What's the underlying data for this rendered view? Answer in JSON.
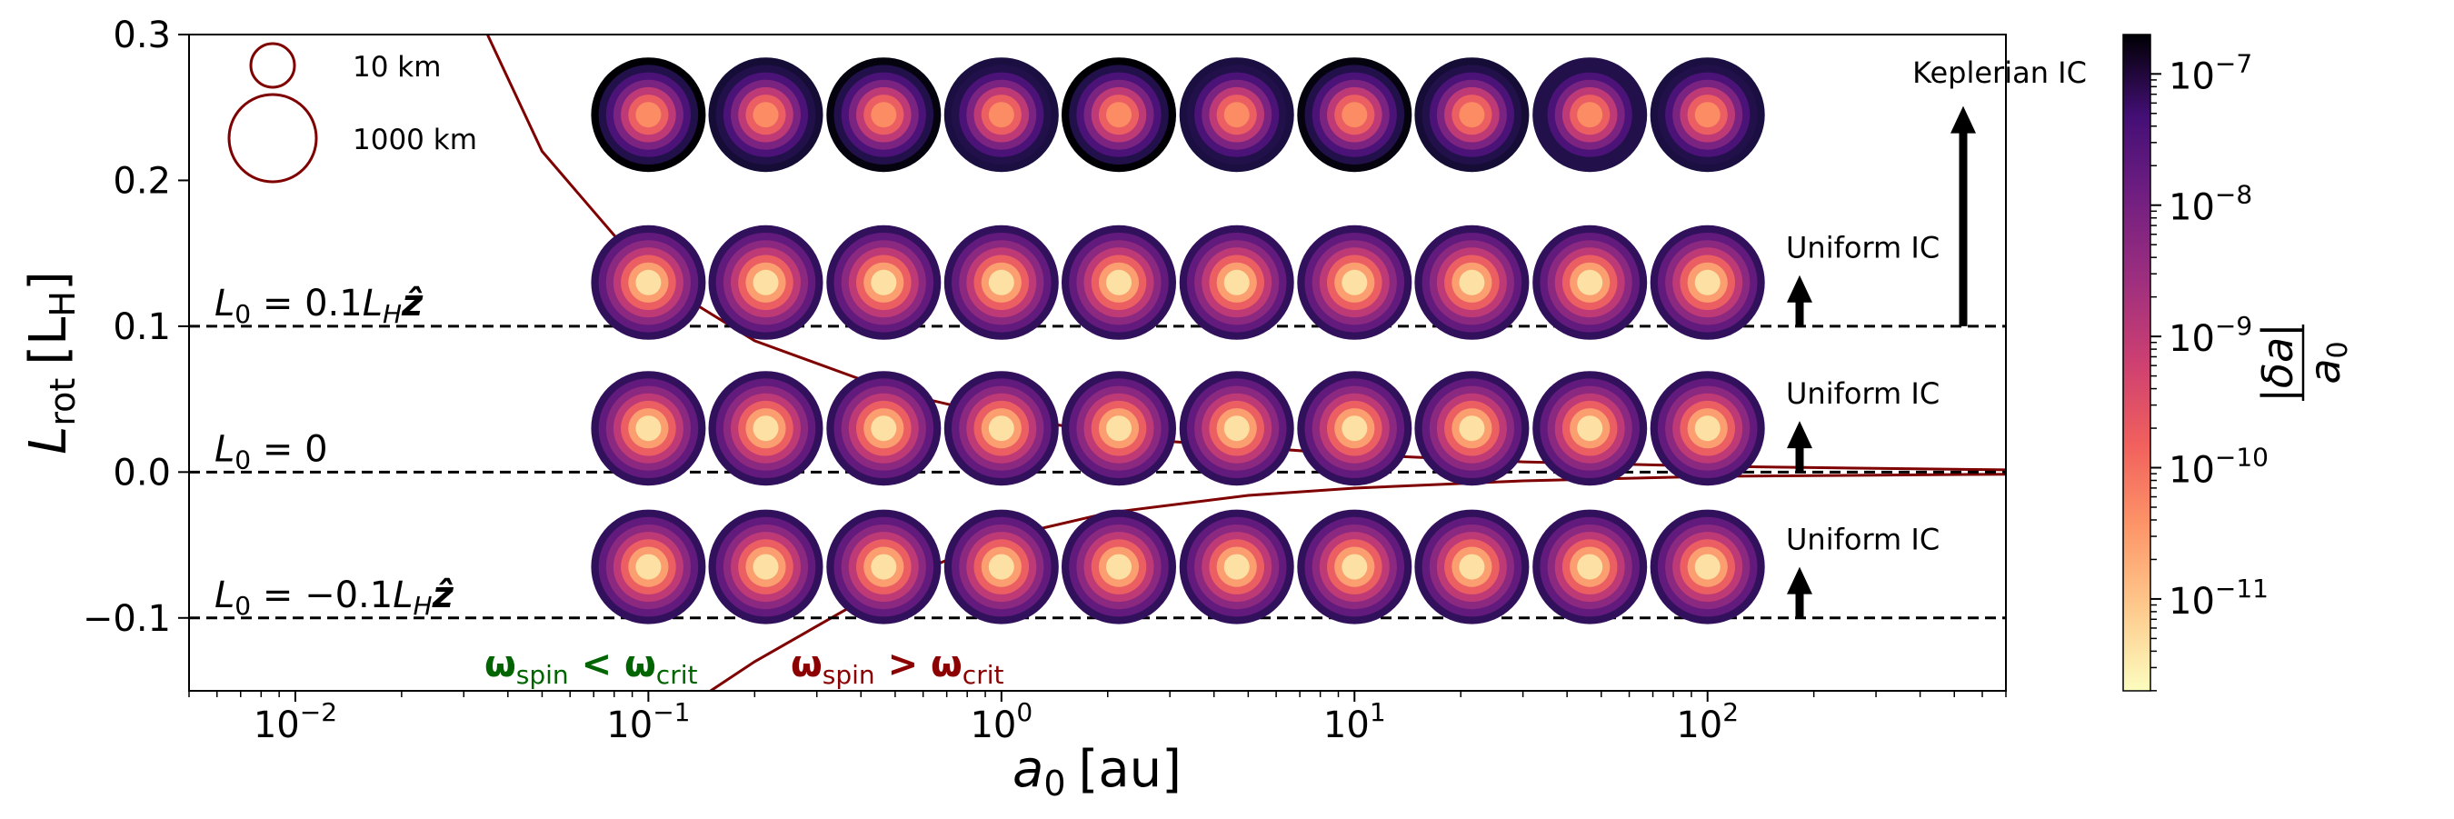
{
  "chart_data": {
    "type": "scatter",
    "x_scale": "log",
    "xlim": [
      0.005,
      700
    ],
    "ylim": [
      -0.15,
      0.3
    ],
    "xlabel": "a",
    "xlabel_sub": "0",
    "xlabel_unit": "[au]",
    "ylabel": "L",
    "ylabel_sub": "rot",
    "ylabel_unit_open": "[L",
    "ylabel_unit_sub": "H",
    "ylabel_unit_close": "]",
    "x_ticks": [
      {
        "value": 0.01,
        "base": "10",
        "exp": "−2"
      },
      {
        "value": 0.1,
        "base": "10",
        "exp": "−1"
      },
      {
        "value": 1,
        "base": "10",
        "exp": "0"
      },
      {
        "value": 10,
        "base": "10",
        "exp": "1"
      },
      {
        "value": 100,
        "base": "10",
        "exp": "2"
      }
    ],
    "y_ticks": [
      {
        "value": 0.3,
        "label": "0.3"
      },
      {
        "value": 0.2,
        "label": "0.2"
      },
      {
        "value": 0.1,
        "label": "0.1"
      },
      {
        "value": 0.0,
        "label": "0.0"
      },
      {
        "value": -0.1,
        "label": "−0.1"
      }
    ],
    "grid": false,
    "reference_lines": [
      {
        "y": 0.1,
        "label_main": "L",
        "label_sub": "0",
        "label_eq": " = 0.1",
        "label_L": "L",
        "label_Lsub": "H",
        "label_vec": "ẑ"
      },
      {
        "y": 0.0,
        "label_main": "L",
        "label_sub": "0",
        "label_eq": " = 0",
        "label_L": "",
        "label_Lsub": "",
        "label_vec": ""
      },
      {
        "y": -0.1,
        "label_main": "L",
        "label_sub": "0",
        "label_eq": " = −0.1",
        "label_L": "L",
        "label_Lsub": "H",
        "label_vec": "ẑ"
      }
    ],
    "critical_curve": {
      "color": "#7f0000",
      "upper": [
        [
          0.035,
          0.3
        ],
        [
          0.05,
          0.22
        ],
        [
          0.1,
          0.135
        ],
        [
          0.2,
          0.09
        ],
        [
          0.5,
          0.055
        ],
        [
          1,
          0.038
        ],
        [
          3,
          0.021
        ],
        [
          10,
          0.012
        ],
        [
          30,
          0.007
        ],
        [
          100,
          0.004
        ],
        [
          300,
          0.0025
        ],
        [
          700,
          0.0015
        ]
      ],
      "lower": [
        [
          0.15,
          -0.15
        ],
        [
          0.2,
          -0.13
        ],
        [
          0.5,
          -0.075
        ],
        [
          1,
          -0.045
        ],
        [
          2,
          -0.028
        ],
        [
          5,
          -0.016
        ],
        [
          10,
          -0.011
        ],
        [
          30,
          -0.006
        ],
        [
          100,
          -0.003
        ],
        [
          700,
          -0.0015
        ]
      ]
    },
    "rows": [
      {
        "name": "Keplerian IC",
        "y": 0.245,
        "ic": "keplerian"
      },
      {
        "name": "Uniform IC",
        "y": 0.13,
        "ic": "uniform"
      },
      {
        "name": "Uniform IC",
        "y": 0.03,
        "ic": "uniform"
      },
      {
        "name": "Uniform IC",
        "y": -0.065,
        "ic": "uniform"
      }
    ],
    "points_x": [
      0.1,
      0.215,
      0.464,
      1.0,
      2.15,
      4.64,
      10,
      21.5,
      46.4,
      100
    ],
    "ring_radii_km": [
      1000,
      464,
      215,
      100,
      46.4,
      21.5,
      10
    ],
    "ring_log_da_uniform": [
      -7.6,
      -8.2,
      -8.7,
      -9.3,
      -10.0,
      -10.7,
      -11.4
    ],
    "ring_log_da_keplerian": [
      -6.8,
      -7.4,
      -7.9,
      -8.5,
      -9.3,
      -10.0,
      -10.5
    ],
    "keplerian_outer_log_da": [
      -6.7,
      -7.2,
      -6.8,
      -7.3,
      -6.7,
      -7.3,
      -6.8,
      -7.2,
      -7.4,
      -7.3
    ],
    "size_legend": [
      {
        "label": "10 km",
        "radius_km": 10
      },
      {
        "label": "1000 km",
        "radius_km": 1000
      }
    ],
    "region_labels": {
      "left": {
        "omega": "ω",
        "sub": "spin",
        "op": " < ",
        "omega2": "ω",
        "sub2": "crit",
        "color": "#006400"
      },
      "right": {
        "omega": "ω",
        "sub": "spin",
        "op": " > ",
        "omega2": "ω",
        "sub2": "crit",
        "color": "#8b0000"
      }
    },
    "arrows": [
      {
        "row": 1,
        "label": "Uniform IC"
      },
      {
        "row": 2,
        "label": "Uniform IC"
      },
      {
        "row": 3,
        "label": "Uniform IC"
      },
      {
        "row": 0,
        "label": "Keplerian IC"
      }
    ],
    "colorbar": {
      "label_num": "|δa|",
      "label_den": "a",
      "label_den_sub": "0",
      "log_range": [
        -11.7,
        -6.7
      ],
      "ticks": [
        {
          "log": -7,
          "base": "10",
          "exp": "−7"
        },
        {
          "log": -8,
          "base": "10",
          "exp": "−8"
        },
        {
          "log": -9,
          "base": "10",
          "exp": "−9"
        },
        {
          "log": -10,
          "base": "10",
          "exp": "−10"
        },
        {
          "log": -11,
          "base": "10",
          "exp": "−11"
        }
      ],
      "colormap": "magma"
    }
  }
}
